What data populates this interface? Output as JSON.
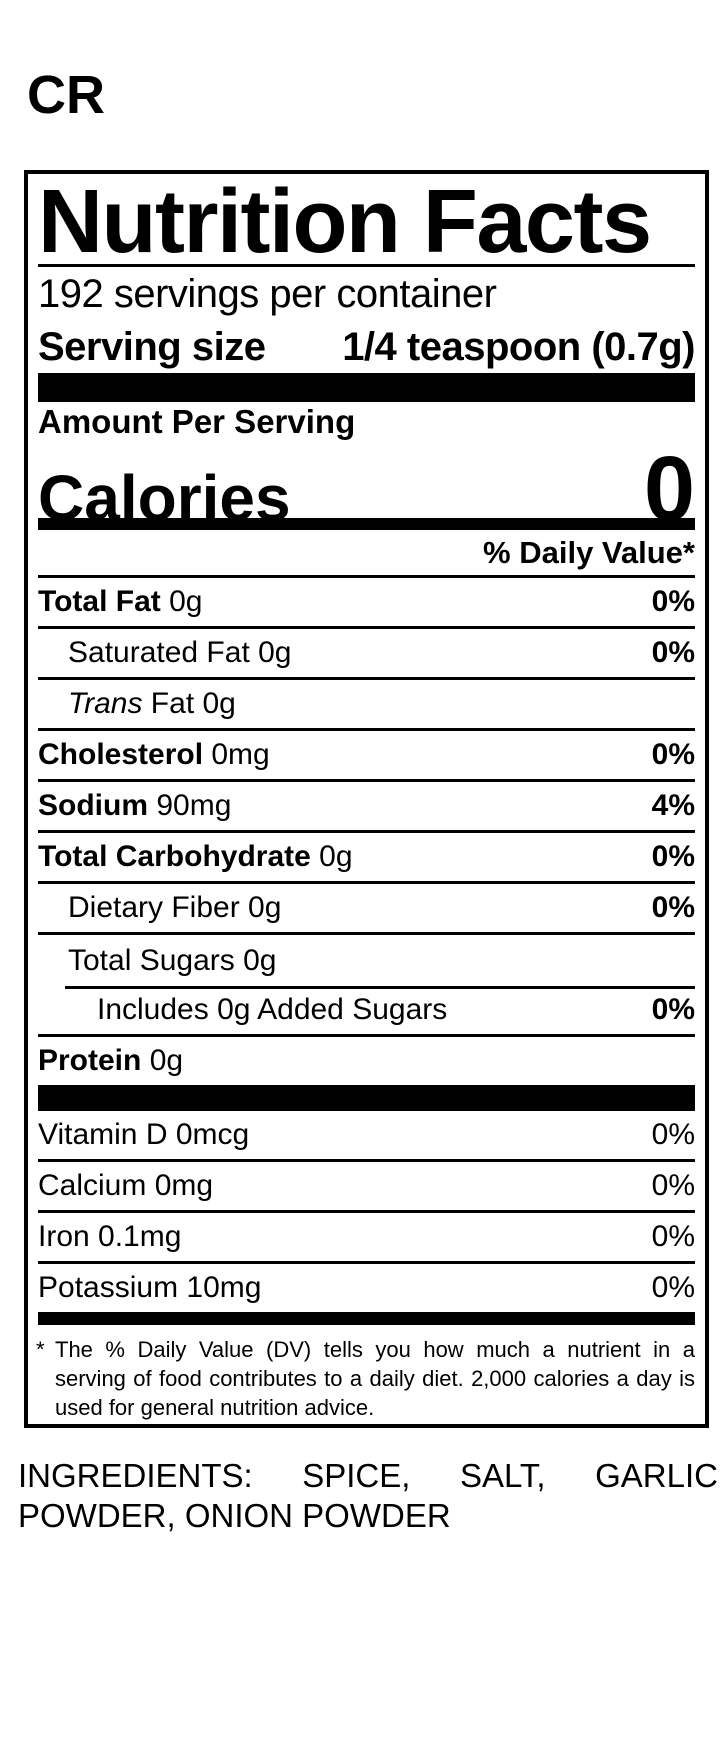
{
  "product_code": "CR",
  "label": {
    "title": "Nutrition Facts",
    "servings_per_container": "192 servings per container",
    "serving_size_label": "Serving size",
    "serving_size_value": "1/4 teaspoon (0.7g)",
    "amount_per_serving": "Amount Per Serving",
    "calories_label": "Calories",
    "calories_value": "0",
    "daily_value_header": "% Daily Value*",
    "nutrients": [
      {
        "name": "Total Fat",
        "amount": "0g",
        "dv": "0%",
        "name_bold": true,
        "dv_bold": true,
        "indent": 0
      },
      {
        "name": "Saturated Fat",
        "amount": "0g",
        "dv": "0%",
        "name_bold": false,
        "dv_bold": true,
        "indent": 1
      },
      {
        "name": "Trans",
        "amount": "Fat 0g",
        "dv": "",
        "name_bold": false,
        "name_italic": true,
        "indent": 1
      },
      {
        "name": "Cholesterol",
        "amount": "0mg",
        "dv": "0%",
        "name_bold": true,
        "dv_bold": true,
        "indent": 0
      },
      {
        "name": "Sodium",
        "amount": "90mg",
        "dv": "4%",
        "name_bold": true,
        "dv_bold": true,
        "indent": 0
      },
      {
        "name": "Total Carbohydrate",
        "amount": "0g",
        "dv": "0%",
        "name_bold": true,
        "dv_bold": true,
        "indent": 0
      },
      {
        "name": "Dietary Fiber",
        "amount": "0g",
        "dv": "0%",
        "name_bold": false,
        "dv_bold": true,
        "indent": 1
      },
      {
        "name": "Total Sugars",
        "amount": "0g",
        "dv": "",
        "name_bold": false,
        "indent": 1,
        "rule": "indented"
      },
      {
        "name": "Includes 0g Added Sugars",
        "amount": "",
        "dv": "0%",
        "name_bold": false,
        "dv_bold": true,
        "indent": 2
      },
      {
        "name": "Protein",
        "amount": "0g",
        "dv": "",
        "name_bold": true,
        "indent": 0,
        "rule": "none",
        "row_class": "protein"
      }
    ],
    "vitamins": [
      {
        "name": "Vitamin D",
        "amount": "0mcg",
        "dv": "0%"
      },
      {
        "name": "Calcium",
        "amount": "0mg",
        "dv": "0%"
      },
      {
        "name": "Iron",
        "amount": "0.1mg",
        "dv": "0%"
      },
      {
        "name": "Potassium",
        "amount": "10mg",
        "dv": "0%",
        "rule": "none",
        "row_class": "potassium"
      }
    ],
    "footnote_marker": "*",
    "footnote": "The % Daily Value (DV) tells you how much a nutrient in a serving of food contributes to a daily diet. 2,000 calories a day is used for general nutrition advice."
  },
  "ingredients": "INGREDIENTS: SPICE, SALT, GARLIC POWDER, ONION POWDER"
}
